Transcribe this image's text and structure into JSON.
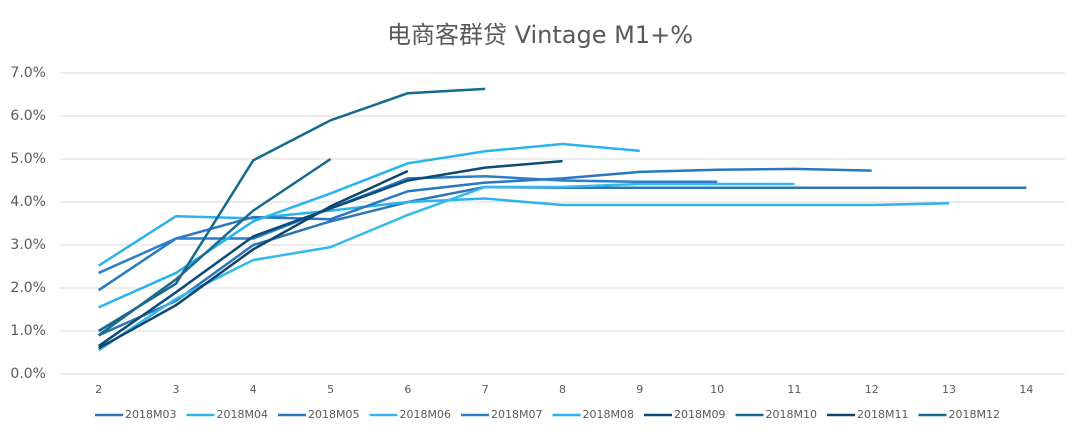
{
  "chart_data": {
    "type": "line",
    "title": "电商客群贷 Vintage M1+%",
    "categories": [
      "2",
      "3",
      "4",
      "5",
      "6",
      "7",
      "8",
      "9",
      "10",
      "11",
      "12",
      "13",
      "14"
    ],
    "ylim": [
      0,
      7
    ],
    "yticks": [
      {
        "value": 0,
        "label": "0.0%"
      },
      {
        "value": 1,
        "label": "1.0%"
      },
      {
        "value": 2,
        "label": "2.0%"
      },
      {
        "value": 3,
        "label": "3.0%"
      },
      {
        "value": 4,
        "label": "4.0%"
      },
      {
        "value": 5,
        "label": "5.0%"
      },
      {
        "value": 6,
        "label": "6.0%"
      },
      {
        "value": 7,
        "label": "7.0%"
      }
    ],
    "grid": true,
    "legend": "bottom",
    "series": [
      {
        "name": "2018M03",
        "color": "#2e75b6",
        "values": [
          0.9,
          1.7,
          3.0,
          3.55,
          4.0,
          4.35,
          4.33,
          4.33,
          4.33,
          4.33,
          4.33,
          4.33,
          4.33
        ]
      },
      {
        "name": "2018M04",
        "color": "#2bb3ea",
        "values": [
          2.52,
          3.67,
          3.62,
          3.8,
          4.0,
          4.08,
          3.93,
          3.93,
          3.93,
          3.93,
          3.93,
          3.97,
          null
        ]
      },
      {
        "name": "2018M05",
        "color": "#2878c0",
        "values": [
          1.95,
          3.15,
          3.65,
          3.6,
          4.25,
          4.45,
          4.55,
          4.7,
          4.75,
          4.77,
          4.73,
          null,
          null
        ]
      },
      {
        "name": "2018M06",
        "color": "#35b8ef",
        "values": [
          0.55,
          1.75,
          2.65,
          2.95,
          3.7,
          4.35,
          4.35,
          4.42,
          4.42,
          4.42,
          null,
          null,
          null
        ]
      },
      {
        "name": "2018M07",
        "color": "#2a7fc6",
        "values": [
          2.35,
          3.15,
          3.15,
          3.85,
          4.55,
          4.6,
          4.5,
          4.47,
          4.47,
          null,
          null,
          null,
          null
        ]
      },
      {
        "name": "2018M08",
        "color": "#27b4f0",
        "values": [
          1.55,
          2.35,
          3.55,
          4.2,
          4.9,
          5.18,
          5.35,
          5.19,
          null,
          null,
          null,
          null,
          null
        ]
      },
      {
        "name": "2018M09",
        "color": "#0c4b78",
        "values": [
          0.65,
          1.9,
          3.2,
          3.85,
          4.5,
          4.8,
          4.95,
          null,
          null,
          null,
          null,
          null,
          null
        ]
      },
      {
        "name": "2018M10",
        "color": "#16698f",
        "values": [
          1.0,
          2.1,
          4.97,
          5.9,
          6.53,
          6.63,
          null,
          null,
          null,
          null,
          null,
          null,
          null
        ]
      },
      {
        "name": "2018M11",
        "color": "#0d466e",
        "values": [
          0.6,
          1.6,
          2.9,
          3.9,
          4.72,
          null,
          null,
          null,
          null,
          null,
          null,
          null,
          null
        ]
      },
      {
        "name": "2018M12",
        "color": "#1b6a8e",
        "values": [
          0.9,
          2.2,
          3.8,
          5.0,
          null,
          null,
          null,
          null,
          null,
          null,
          null,
          null,
          null
        ]
      }
    ]
  }
}
